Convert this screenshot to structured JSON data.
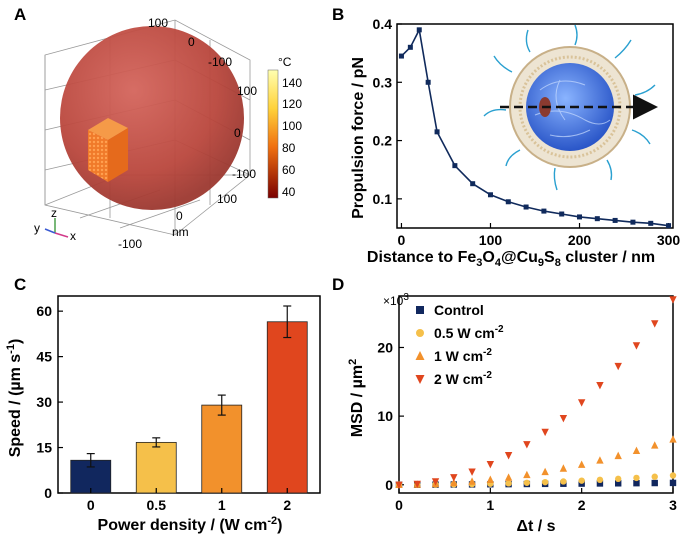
{
  "panels": {
    "a": {
      "label": "A",
      "axis_ticks": {
        "top_pos": "100",
        "top_zero": "0",
        "top_neg": "-100",
        "right_pos": "100",
        "right_zero": "0",
        "right_neg": "-100",
        "bottom_pos": "100",
        "bottom_zero": "0",
        "bottom_neg": "-100"
      },
      "axis_unit": "nm",
      "colorbar": {
        "unit": "°C",
        "ticks": [
          "140",
          "120",
          "100",
          "80",
          "60",
          "40"
        ],
        "top_color": "#ffffb0",
        "mid_color": "#f07010",
        "bottom_color": "#7a0000"
      },
      "triad": {
        "x": "x",
        "y": "y",
        "z": "z"
      },
      "sphere_color": "#c0423a",
      "cube_color": "#f07a2a"
    },
    "b": {
      "label": "B",
      "inset_alt": "nanomotor illustration",
      "inset_colors": {
        "core": "#3a6ad8",
        "shell": "#e8d4b0",
        "flagella": "#2aa0d0"
      }
    },
    "c": {
      "label": "C"
    },
    "d": {
      "label": "D",
      "multiplier": "×10",
      "multiplier_exp": "3"
    }
  },
  "chart_data": [
    {
      "id": "B",
      "type": "line",
      "x": [
        0,
        10,
        20,
        30,
        40,
        60,
        80,
        100,
        120,
        140,
        160,
        180,
        200,
        220,
        240,
        260,
        280,
        300
      ],
      "y": [
        0.345,
        0.36,
        0.39,
        0.3,
        0.215,
        0.157,
        0.126,
        0.107,
        0.095,
        0.086,
        0.079,
        0.074,
        0.069,
        0.066,
        0.063,
        0.06,
        0.058,
        0.054
      ],
      "xlim": [
        -5,
        305
      ],
      "ylim": [
        0.05,
        0.4
      ],
      "xticks": [
        "0",
        "100",
        "200",
        "300"
      ],
      "yticks": [
        "0.1",
        "0.2",
        "0.3",
        "0.4"
      ],
      "xlabel": "Distance to Fe3O4@Cu9S8 cluster / nm",
      "xlabel_parts": {
        "a": "Distance to Fe",
        "s1": "3",
        "b": "O",
        "s2": "4",
        "c": "@Cu",
        "s3": "9",
        "d": "S",
        "s4": "8",
        "e": " cluster / nm"
      },
      "ylabel": "Propulsion force / pN",
      "color": "#102a5c"
    },
    {
      "id": "C",
      "type": "bar",
      "categories": [
        "0",
        "0.5",
        "1",
        "2"
      ],
      "values": [
        10.8,
        16.7,
        29.0,
        56.5
      ],
      "errors": [
        2.2,
        1.5,
        3.3,
        5.2
      ],
      "colors": [
        "#11275e",
        "#f5c04a",
        "#f2912c",
        "#e0461e"
      ],
      "ylim": [
        0,
        65
      ],
      "yticks": [
        "0",
        "15",
        "30",
        "45",
        "60"
      ],
      "xlabel": "Power density / (W cm-2)",
      "xlabel_parts": {
        "a": "Power density / (W cm",
        "sup": "-2",
        "b": ")"
      },
      "ylabel": "Speed / (µm s-1)",
      "ylabel_parts": {
        "a": "Speed / (µm s",
        "sup": "-1",
        "b": ")"
      }
    },
    {
      "id": "D",
      "type": "scatter",
      "xlim": [
        0,
        3
      ],
      "ylim": [
        -1.2,
        27.5
      ],
      "xticks": [
        "0",
        "1",
        "2",
        "3"
      ],
      "yticks": [
        "0",
        "10",
        "20"
      ],
      "xlabel": "Δt / s",
      "ylabel": "MSD / µm2",
      "ylabel_parts": {
        "a": "MSD / µm",
        "sup": "2"
      },
      "legend_position": "top-left",
      "series": [
        {
          "name": "Control",
          "label": "Control",
          "sup": "",
          "marker": "square",
          "color": "#11275e",
          "x": [
            0,
            0.2,
            0.4,
            0.6,
            0.8,
            1.0,
            1.2,
            1.4,
            1.6,
            1.8,
            2.0,
            2.2,
            2.4,
            2.6,
            2.8,
            3.0
          ],
          "y": [
            0,
            0,
            0.02,
            0.04,
            0.05,
            0.07,
            0.09,
            0.11,
            0.13,
            0.15,
            0.17,
            0.19,
            0.21,
            0.23,
            0.25,
            0.27
          ]
        },
        {
          "name": "0.5 W cm-2",
          "label": "0.5 W cm",
          "sup": "-2",
          "marker": "circle",
          "color": "#f5c04a",
          "x": [
            0,
            0.2,
            0.4,
            0.6,
            0.8,
            1.0,
            1.2,
            1.4,
            1.6,
            1.8,
            2.0,
            2.2,
            2.4,
            2.6,
            2.8,
            3.0
          ],
          "y": [
            0,
            0.01,
            0.03,
            0.06,
            0.1,
            0.15,
            0.21,
            0.29,
            0.38,
            0.48,
            0.6,
            0.72,
            0.86,
            1.0,
            1.17,
            1.35
          ]
        },
        {
          "name": "1 W cm-2",
          "label": "1 W cm",
          "sup": "-2",
          "marker": "triangle-up",
          "color": "#f2912c",
          "x": [
            0,
            0.2,
            0.4,
            0.6,
            0.8,
            1.0,
            1.2,
            1.4,
            1.6,
            1.8,
            2.0,
            2.2,
            2.4,
            2.6,
            2.8,
            3.0
          ],
          "y": [
            0,
            0.03,
            0.12,
            0.26,
            0.47,
            0.73,
            1.05,
            1.43,
            1.87,
            2.37,
            2.92,
            3.54,
            4.21,
            4.94,
            5.73,
            6.6
          ]
        },
        {
          "name": "2 W cm-2",
          "label": "2 W cm",
          "sup": "-2",
          "marker": "triangle-down",
          "color": "#e0461e",
          "x": [
            0,
            0.2,
            0.4,
            0.6,
            0.8,
            1.0,
            1.2,
            1.4,
            1.6,
            1.8,
            2.0,
            2.2,
            2.4,
            2.6,
            2.8,
            3.0
          ],
          "y": [
            0,
            0.12,
            0.48,
            1.08,
            1.9,
            3.0,
            4.3,
            5.9,
            7.7,
            9.7,
            12.0,
            14.5,
            17.3,
            20.3,
            23.5,
            27.0
          ]
        }
      ]
    }
  ]
}
